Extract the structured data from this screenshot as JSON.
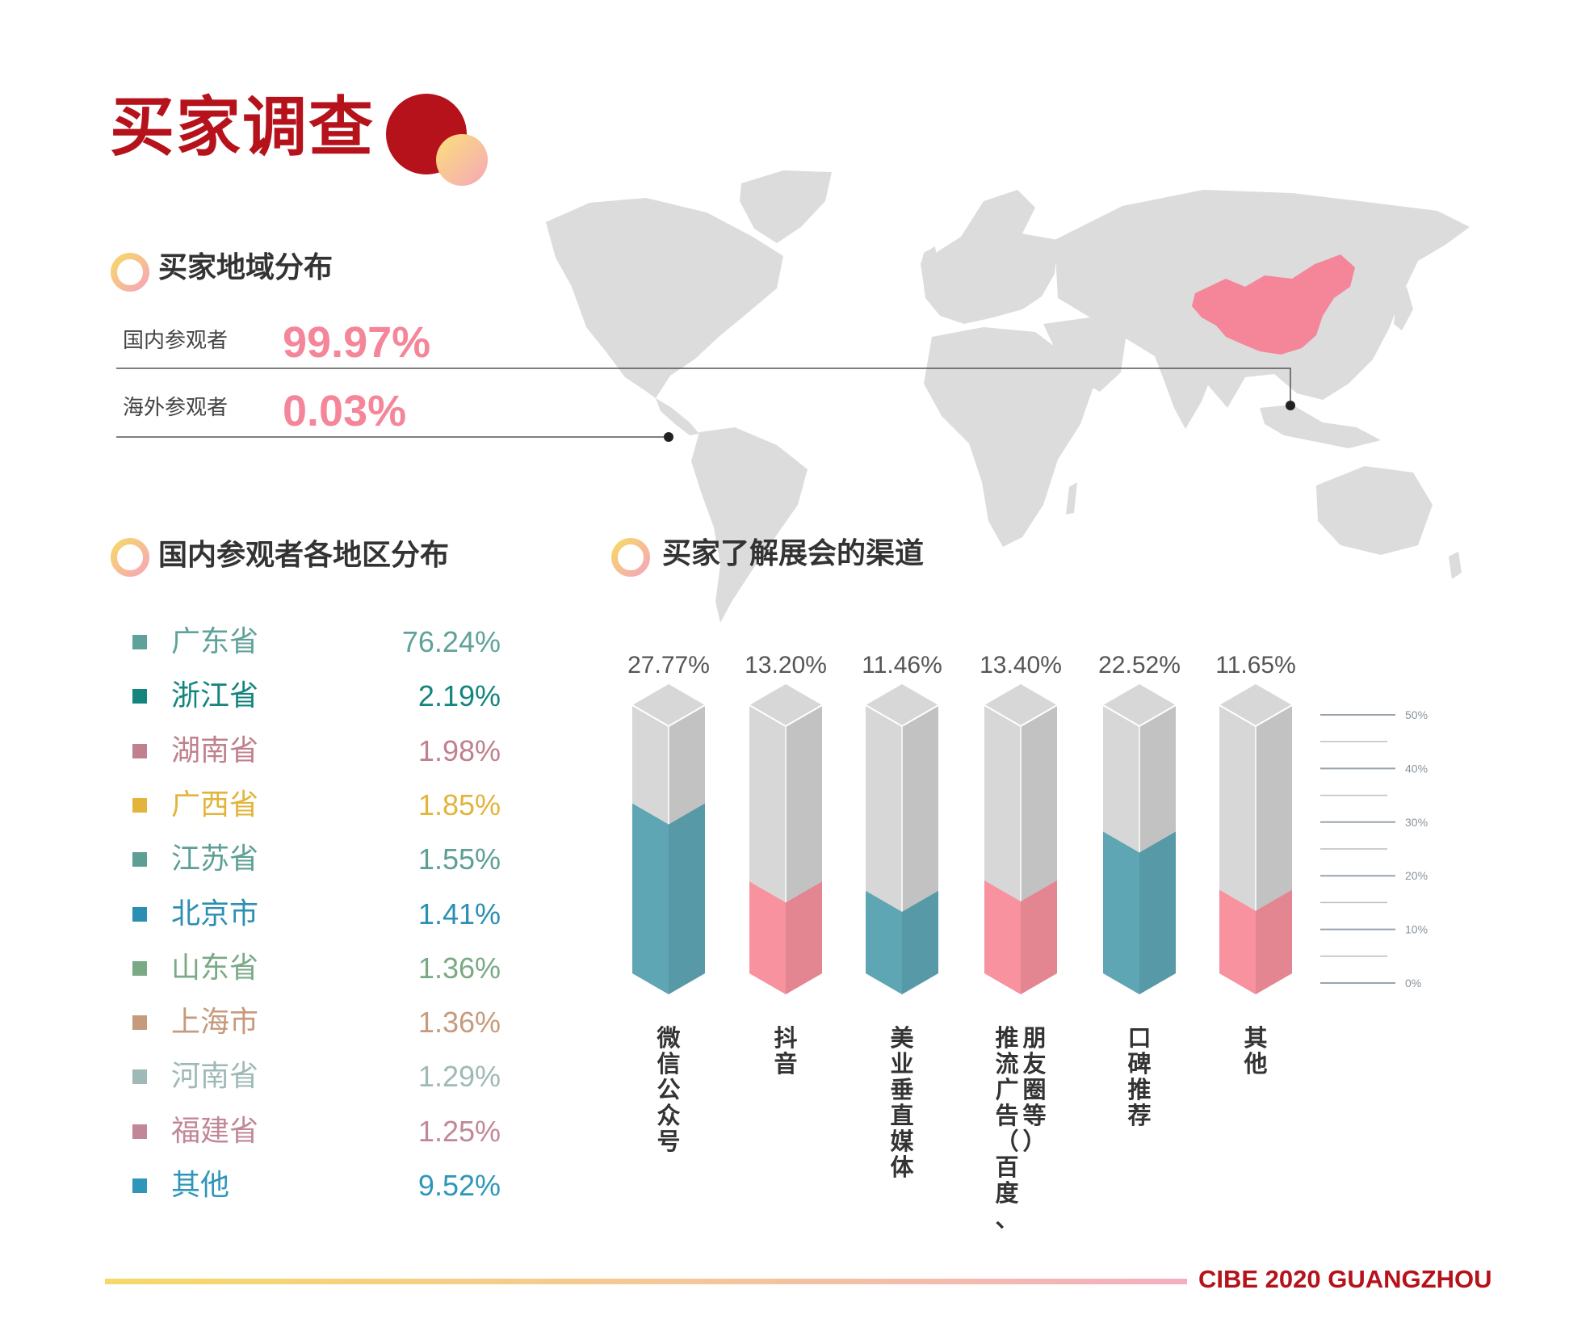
{
  "page": {
    "title": "买家调查",
    "brand_accent": "#b5121b",
    "footer_brand": "CIBE 2020 GUANGZHOU"
  },
  "geo_section": {
    "heading": "买家地域分布",
    "highlight_color": "#f5869a",
    "domestic": {
      "label": "国内参观者",
      "value": "99.97%"
    },
    "overseas": {
      "label": "海外参观者",
      "value": "0.03%"
    }
  },
  "region_section": {
    "heading": "国内参观者各地区分布",
    "items": [
      {
        "name": "广东省",
        "value": "76.24%",
        "color": "#5fa29a"
      },
      {
        "name": "浙江省",
        "value": "2.19%",
        "color": "#13857e"
      },
      {
        "name": "湖南省",
        "value": "1.98%",
        "color": "#c0808e"
      },
      {
        "name": "广西省",
        "value": "1.85%",
        "color": "#e2b43c"
      },
      {
        "name": "江苏省",
        "value": "1.55%",
        "color": "#5e9f95"
      },
      {
        "name": "北京市",
        "value": "1.41%",
        "color": "#2b8fb3"
      },
      {
        "name": "山东省",
        "value": "1.36%",
        "color": "#7aa986"
      },
      {
        "name": "上海市",
        "value": "1.36%",
        "color": "#c69a7c"
      },
      {
        "name": "河南省",
        "value": "1.29%",
        "color": "#9fb9b6"
      },
      {
        "name": "福建省",
        "value": "1.25%",
        "color": "#c18797"
      },
      {
        "name": "其他",
        "value": "9.52%",
        "color": "#2e96b9"
      }
    ]
  },
  "channel_section": {
    "heading": "买家了解展会的渠道"
  },
  "chart_data": {
    "type": "bar",
    "title": "买家了解展会的渠道",
    "categories": [
      "微信公众号",
      "抖音",
      "美业垂直媒体",
      "推流广告（百度、朋友圈等）",
      "口碑推荐",
      "其他"
    ],
    "values": [
      27.77,
      13.2,
      11.46,
      13.4,
      22.52,
      11.65
    ],
    "value_labels": [
      "27.77%",
      "13.20%",
      "11.46%",
      "13.40%",
      "22.52%",
      "11.65%"
    ],
    "bar_colors": [
      "#5fa6b4",
      "#f8929f",
      "#5fa6b4",
      "#f8929f",
      "#5fa6b4",
      "#f8929f"
    ],
    "track_color": "#d7d7d7",
    "ylim": [
      0,
      50
    ],
    "yticks": [
      0,
      10,
      20,
      30,
      40,
      50
    ],
    "ytick_labels": [
      "0%",
      "10%",
      "20%",
      "30%",
      "40%",
      "50%"
    ],
    "grid": false,
    "legend": "none"
  }
}
